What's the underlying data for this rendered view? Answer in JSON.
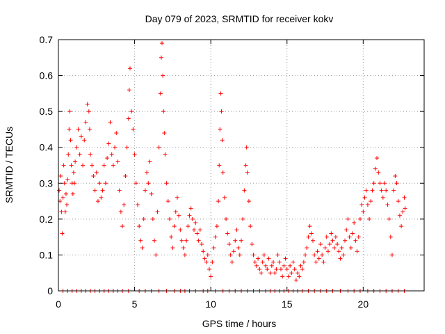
{
  "chart_data": {
    "type": "scatter",
    "title": "Day 079 of 2023, SRMTID for receiver kokv",
    "xlabel": "GPS time / hours",
    "ylabel": "SRMTID / TECUs",
    "xlim": [
      0,
      24
    ],
    "ylim": [
      0,
      0.7
    ],
    "x_ticks": [
      0,
      5,
      10,
      15,
      20
    ],
    "x_tick_labels": [
      "0",
      "5",
      "10",
      "15",
      "20"
    ],
    "y_ticks": [
      0,
      0.1,
      0.2,
      0.3,
      0.4,
      0.5,
      0.6,
      0.7
    ],
    "y_tick_labels": [
      "0",
      "0.1",
      "0.2",
      "0.3",
      "0.4",
      "0.5",
      "0.6",
      "0.7"
    ],
    "grid": true,
    "marker": "plus",
    "series_color": "#ff0000",
    "series": [
      {
        "name": "SRMTID",
        "points": [
          [
            0.05,
            0.28
          ],
          [
            0.1,
            0.25
          ],
          [
            0.15,
            0.32
          ],
          [
            0.2,
            0.22
          ],
          [
            0.25,
            0.16
          ],
          [
            0.3,
            0.26
          ],
          [
            0.35,
            0.35
          ],
          [
            0.4,
            0.3
          ],
          [
            0.45,
            0.22
          ],
          [
            0.5,
            0.27
          ],
          [
            0.55,
            0.24
          ],
          [
            0.6,
            0.31
          ],
          [
            0.65,
            0.38
          ],
          [
            0.7,
            0.45
          ],
          [
            0.75,
            0.5
          ],
          [
            0.8,
            0.42
          ],
          [
            0.85,
            0.35
          ],
          [
            0.9,
            0.3
          ],
          [
            0.95,
            0.27
          ],
          [
            1.0,
            0.33
          ],
          [
            1.05,
            0.3
          ],
          [
            1.1,
            0.36
          ],
          [
            1.2,
            0.4
          ],
          [
            1.3,
            0.45
          ],
          [
            1.4,
            0.38
          ],
          [
            1.5,
            0.43
          ],
          [
            1.6,
            0.35
          ],
          [
            1.7,
            0.42
          ],
          [
            1.8,
            0.47
          ],
          [
            1.9,
            0.52
          ],
          [
            2.0,
            0.5
          ],
          [
            2.05,
            0.45
          ],
          [
            2.1,
            0.38
          ],
          [
            2.2,
            0.35
          ],
          [
            2.3,
            0.32
          ],
          [
            2.4,
            0.28
          ],
          [
            2.5,
            0.33
          ],
          [
            2.6,
            0.25
          ],
          [
            2.7,
            0.3
          ],
          [
            2.8,
            0.26
          ],
          [
            2.9,
            0.28
          ],
          [
            3.0,
            0.35
          ],
          [
            3.1,
            0.3
          ],
          [
            3.2,
            0.37
          ],
          [
            3.3,
            0.41
          ],
          [
            3.4,
            0.47
          ],
          [
            3.5,
            0.38
          ],
          [
            3.6,
            0.35
          ],
          [
            3.7,
            0.4
          ],
          [
            3.8,
            0.44
          ],
          [
            3.9,
            0.36
          ],
          [
            4.0,
            0.28
          ],
          [
            4.1,
            0.22
          ],
          [
            4.2,
            0.18
          ],
          [
            4.3,
            0.24
          ],
          [
            4.4,
            0.32
          ],
          [
            4.5,
            0.4
          ],
          [
            4.6,
            0.48
          ],
          [
            4.65,
            0.56
          ],
          [
            4.7,
            0.62
          ],
          [
            4.8,
            0.5
          ],
          [
            4.9,
            0.45
          ],
          [
            5.0,
            0.38
          ],
          [
            5.1,
            0.3
          ],
          [
            5.2,
            0.24
          ],
          [
            5.3,
            0.18
          ],
          [
            5.4,
            0.14
          ],
          [
            5.5,
            0.12
          ],
          [
            5.6,
            0.2
          ],
          [
            5.7,
            0.28
          ],
          [
            5.8,
            0.33
          ],
          [
            5.9,
            0.3
          ],
          [
            6.0,
            0.36
          ],
          [
            6.1,
            0.27
          ],
          [
            6.2,
            0.2
          ],
          [
            6.3,
            0.14
          ],
          [
            6.4,
            0.1
          ],
          [
            6.5,
            0.22
          ],
          [
            6.6,
            0.4
          ],
          [
            6.7,
            0.55
          ],
          [
            6.75,
            0.65
          ],
          [
            6.8,
            0.69
          ],
          [
            6.85,
            0.6
          ],
          [
            6.9,
            0.5
          ],
          [
            6.95,
            0.44
          ],
          [
            7.0,
            0.38
          ],
          [
            7.1,
            0.3
          ],
          [
            7.2,
            0.25
          ],
          [
            7.3,
            0.2
          ],
          [
            7.4,
            0.15
          ],
          [
            7.5,
            0.12
          ],
          [
            7.6,
            0.18
          ],
          [
            7.7,
            0.22
          ],
          [
            7.8,
            0.26
          ],
          [
            7.9,
            0.21
          ],
          [
            8.0,
            0.17
          ],
          [
            8.1,
            0.14
          ],
          [
            8.2,
            0.12
          ],
          [
            8.3,
            0.1
          ],
          [
            8.4,
            0.14
          ],
          [
            8.5,
            0.18
          ],
          [
            8.6,
            0.21
          ],
          [
            8.7,
            0.23
          ],
          [
            8.8,
            0.2
          ],
          [
            8.9,
            0.17
          ],
          [
            9.0,
            0.19
          ],
          [
            9.1,
            0.16
          ],
          [
            9.2,
            0.14
          ],
          [
            9.3,
            0.17
          ],
          [
            9.4,
            0.13
          ],
          [
            9.5,
            0.11
          ],
          [
            9.6,
            0.09
          ],
          [
            9.7,
            0.08
          ],
          [
            9.8,
            0.1
          ],
          [
            9.9,
            0.06
          ],
          [
            10.0,
            0.04
          ],
          [
            10.1,
            0.08
          ],
          [
            10.2,
            0.12
          ],
          [
            10.3,
            0.15
          ],
          [
            10.4,
            0.18
          ],
          [
            10.5,
            0.25
          ],
          [
            10.55,
            0.35
          ],
          [
            10.6,
            0.45
          ],
          [
            10.65,
            0.55
          ],
          [
            10.7,
            0.5
          ],
          [
            10.75,
            0.42
          ],
          [
            10.8,
            0.33
          ],
          [
            10.9,
            0.26
          ],
          [
            11.0,
            0.2
          ],
          [
            11.1,
            0.16
          ],
          [
            11.2,
            0.13
          ],
          [
            11.3,
            0.1
          ],
          [
            11.4,
            0.08
          ],
          [
            11.5,
            0.11
          ],
          [
            11.6,
            0.14
          ],
          [
            11.7,
            0.17
          ],
          [
            11.8,
            0.12
          ],
          [
            11.9,
            0.1
          ],
          [
            12.0,
            0.14
          ],
          [
            12.1,
            0.2
          ],
          [
            12.2,
            0.28
          ],
          [
            12.3,
            0.35
          ],
          [
            12.35,
            0.4
          ],
          [
            12.4,
            0.33
          ],
          [
            12.5,
            0.25
          ],
          [
            12.6,
            0.18
          ],
          [
            12.7,
            0.13
          ],
          [
            12.8,
            0.1
          ],
          [
            12.9,
            0.08
          ],
          [
            13.0,
            0.07
          ],
          [
            13.1,
            0.09
          ],
          [
            13.2,
            0.06
          ],
          [
            13.3,
            0.05
          ],
          [
            13.4,
            0.08
          ],
          [
            13.5,
            0.1
          ],
          [
            13.6,
            0.07
          ],
          [
            13.7,
            0.06
          ],
          [
            13.8,
            0.09
          ],
          [
            13.9,
            0.05
          ],
          [
            14.0,
            0.07
          ],
          [
            14.1,
            0.08
          ],
          [
            14.2,
            0.05
          ],
          [
            14.3,
            0.06
          ],
          [
            14.4,
            0.1
          ],
          [
            14.5,
            0.08
          ],
          [
            14.6,
            0.06
          ],
          [
            14.7,
            0.04
          ],
          [
            14.8,
            0.07
          ],
          [
            14.9,
            0.09
          ],
          [
            15.0,
            0.06
          ],
          [
            15.1,
            0.04
          ],
          [
            15.2,
            0.07
          ],
          [
            15.3,
            0.05
          ],
          [
            15.4,
            0.08
          ],
          [
            15.5,
            0.06
          ],
          [
            15.6,
            0.03
          ],
          [
            15.7,
            0.05
          ],
          [
            15.8,
            0.04
          ],
          [
            15.9,
            0.07
          ],
          [
            16.0,
            0.06
          ],
          [
            16.1,
            0.08
          ],
          [
            16.2,
            0.1
          ],
          [
            16.3,
            0.12
          ],
          [
            16.4,
            0.15
          ],
          [
            16.5,
            0.18
          ],
          [
            16.6,
            0.16
          ],
          [
            16.7,
            0.14
          ],
          [
            16.8,
            0.1
          ],
          [
            16.9,
            0.08
          ],
          [
            17.0,
            0.11
          ],
          [
            17.1,
            0.09
          ],
          [
            17.2,
            0.13
          ],
          [
            17.3,
            0.1
          ],
          [
            17.4,
            0.08
          ],
          [
            17.5,
            0.12
          ],
          [
            17.6,
            0.15
          ],
          [
            17.7,
            0.11
          ],
          [
            17.8,
            0.13
          ],
          [
            17.9,
            0.16
          ],
          [
            18.0,
            0.14
          ],
          [
            18.1,
            0.12
          ],
          [
            18.2,
            0.15
          ],
          [
            18.3,
            0.13
          ],
          [
            18.4,
            0.11
          ],
          [
            18.5,
            0.09
          ],
          [
            18.6,
            0.12
          ],
          [
            18.7,
            0.1
          ],
          [
            18.8,
            0.14
          ],
          [
            18.9,
            0.17
          ],
          [
            19.0,
            0.2
          ],
          [
            19.1,
            0.15
          ],
          [
            19.2,
            0.12
          ],
          [
            19.3,
            0.16
          ],
          [
            19.4,
            0.19
          ],
          [
            19.5,
            0.14
          ],
          [
            19.6,
            0.11
          ],
          [
            19.7,
            0.15
          ],
          [
            19.8,
            0.2
          ],
          [
            19.9,
            0.24
          ],
          [
            20.0,
            0.22
          ],
          [
            20.1,
            0.26
          ],
          [
            20.2,
            0.28
          ],
          [
            20.3,
            0.24
          ],
          [
            20.4,
            0.2
          ],
          [
            20.5,
            0.25
          ],
          [
            20.6,
            0.28
          ],
          [
            20.7,
            0.3
          ],
          [
            20.8,
            0.34
          ],
          [
            20.9,
            0.37
          ],
          [
            21.0,
            0.33
          ],
          [
            21.1,
            0.3
          ],
          [
            21.2,
            0.28
          ],
          [
            21.3,
            0.26
          ],
          [
            21.4,
            0.3
          ],
          [
            21.5,
            0.28
          ],
          [
            21.6,
            0.24
          ],
          [
            21.7,
            0.2
          ],
          [
            21.8,
            0.15
          ],
          [
            21.9,
            0.1
          ],
          [
            22.0,
            0.28
          ],
          [
            22.1,
            0.32
          ],
          [
            22.2,
            0.3
          ],
          [
            22.3,
            0.25
          ],
          [
            22.4,
            0.21
          ],
          [
            22.5,
            0.18
          ],
          [
            22.6,
            0.22
          ],
          [
            22.7,
            0.26
          ],
          [
            22.75,
            0.23
          ]
        ]
      }
    ],
    "zero_markers_x": [
      0.3,
      0.6,
      0.9,
      1.2,
      1.5,
      1.8,
      2.1,
      2.4,
      2.7,
      3.0,
      3.3,
      3.6,
      3.9,
      4.2,
      4.6,
      5.3,
      5.7,
      6.1,
      6.6,
      7.1,
      7.6,
      8.0,
      8.3,
      8.6,
      9.0,
      9.5,
      9.8,
      10.3,
      10.8,
      11.2,
      11.6,
      12.0,
      12.4,
      12.8,
      13.2,
      13.6,
      13.9,
      14.2,
      14.5,
      14.8,
      15.1,
      15.4,
      15.7,
      16.0,
      16.4,
      16.8,
      17.2,
      17.6,
      18.0,
      18.5,
      19.0,
      19.4,
      19.8,
      20.3,
      20.7,
      21.1,
      21.5,
      21.9,
      22.3,
      22.7
    ]
  }
}
